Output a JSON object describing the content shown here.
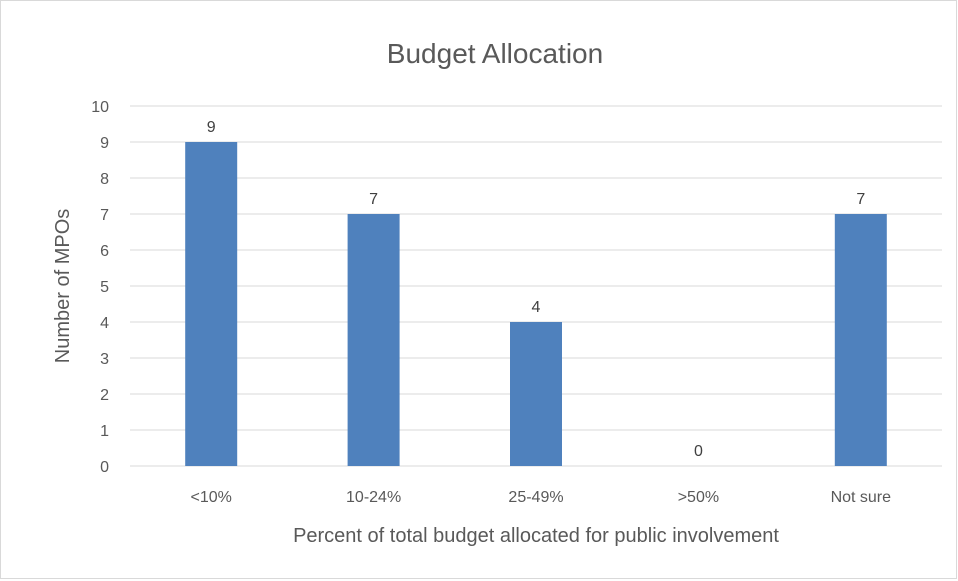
{
  "chart_data": {
    "type": "bar",
    "title": "Budget Allocation",
    "xlabel": "Percent of total budget allocated for public involvement",
    "ylabel": "Number of MPOs",
    "categories": [
      "<10%",
      "10-24%",
      "25-49%",
      ">50%",
      "Not sure"
    ],
    "values": [
      9,
      7,
      4,
      0,
      7
    ],
    "ylim": [
      0,
      10
    ],
    "yticks": [
      "0",
      "1",
      "2",
      "3",
      "4",
      "5",
      "6",
      "7",
      "8",
      "9",
      "10"
    ],
    "grid": true,
    "legend": "none",
    "bar_color": "#4f81bd"
  }
}
